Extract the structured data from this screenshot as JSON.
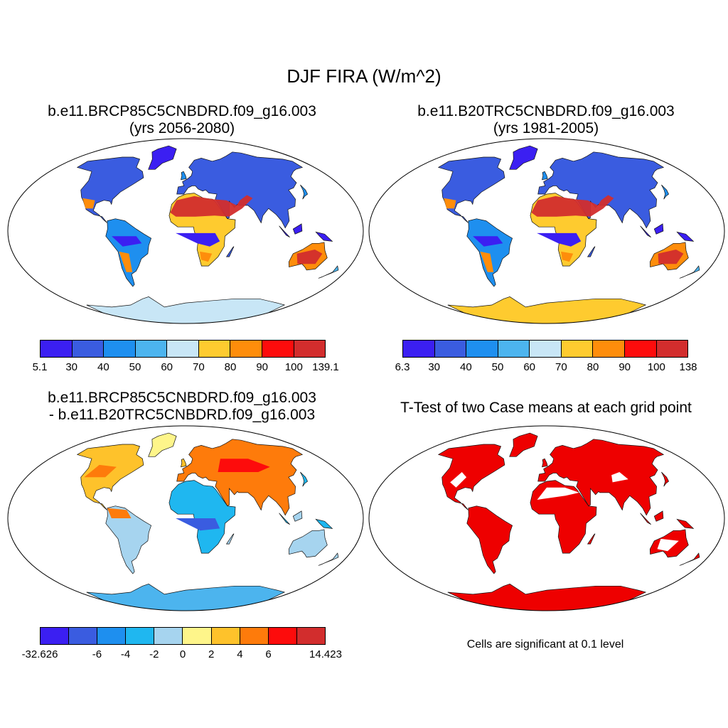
{
  "figure": {
    "title": "DJF FIRA (W/m^2)"
  },
  "panels": {
    "top_left": {
      "title_line1": "b.e11.BRCP85C5CNBDRD.f09_g16.003",
      "title_line2": "(yrs 2056-2080)"
    },
    "top_right": {
      "title_line1": "b.e11.B20TRC5CNBDRD.f09_g16.003",
      "title_line2": "(yrs 1981-2005)"
    },
    "bottom_left": {
      "title_line1": "b.e11.BRCP85C5CNBDRD.f09_g16.003",
      "title_line2": "- b.e11.B20TRC5CNBDRD.f09_g16.003"
    },
    "bottom_right": {
      "title_line1": "T-Test of two Case means at each grid point",
      "note": "Cells are significant at 0.1 level"
    }
  },
  "colorbars": {
    "top_left": {
      "labels": [
        "5.1",
        "30",
        "40",
        "50",
        "60",
        "70",
        "80",
        "90",
        "100",
        "139.1"
      ],
      "colors": [
        "#3b1ff2",
        "#3a5ce0",
        "#1e8fef",
        "#4cb4ee",
        "#c8e6f6",
        "#fecb2f",
        "#fe8d0b",
        "#fd0c0c",
        "#d22d2d"
      ]
    },
    "top_right": {
      "labels": [
        "6.3",
        "30",
        "40",
        "50",
        "60",
        "70",
        "80",
        "90",
        "100",
        "138"
      ],
      "colors": [
        "#3b1ff2",
        "#3a5ce0",
        "#1e8fef",
        "#4cb4ee",
        "#c8e6f6",
        "#fecb2f",
        "#fe8d0b",
        "#fd0c0c",
        "#d22d2d"
      ]
    },
    "bottom_left": {
      "labels": [
        "-32.626",
        "-6",
        "-4",
        "-2",
        "0",
        "2",
        "4",
        "6",
        "14.423"
      ],
      "colors": [
        "#3b1ff2",
        "#3a5ce0",
        "#1e8fef",
        "#1fb7f0",
        "#a6d4ef",
        "#fef58a",
        "#fec22b",
        "#fe7b0b",
        "#fd0c0c",
        "#d22d2d"
      ]
    }
  },
  "colors": {
    "sig": "#ee0000",
    "antarctica_top_left": "#c8e6f6",
    "antarctica_top_right": "#fecb2f",
    "antarctica_diff": "#4cb4ee"
  }
}
